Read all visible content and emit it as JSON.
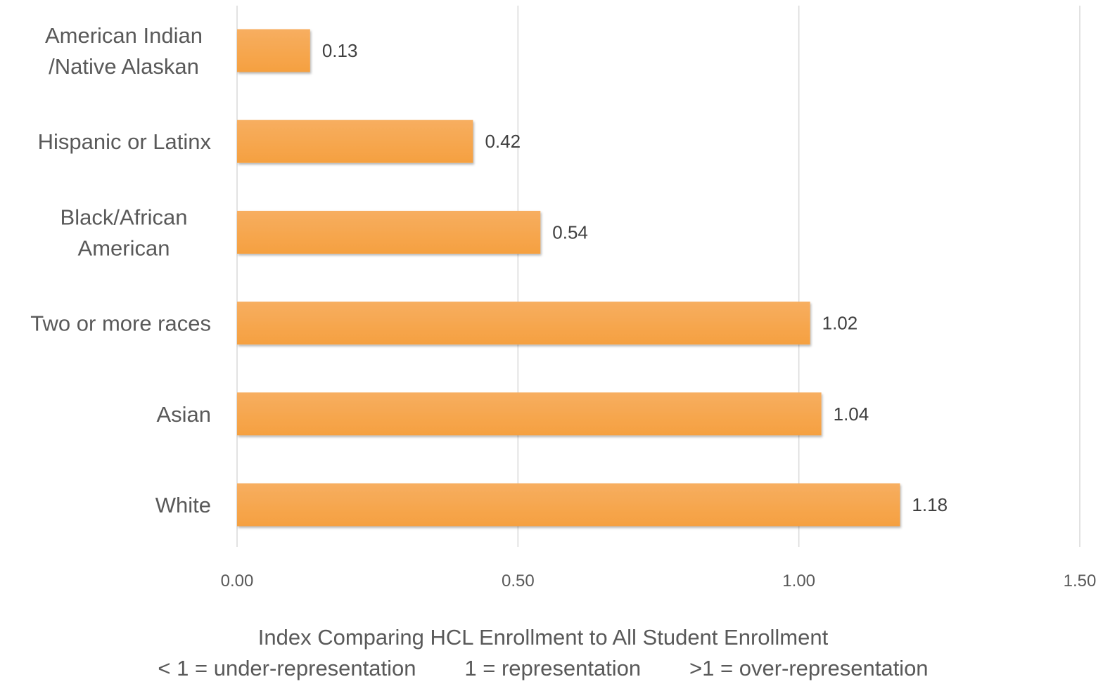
{
  "chart_data": {
    "type": "bar",
    "orientation": "horizontal",
    "categories": [
      [
        "American Indian",
        "/Native Alaskan"
      ],
      [
        "Hispanic or Latinx"
      ],
      [
        "Black/African",
        "American"
      ],
      [
        "Two or more races"
      ],
      [
        "Asian"
      ],
      [
        "White"
      ]
    ],
    "values": [
      0.13,
      0.42,
      0.54,
      1.02,
      1.04,
      1.18
    ],
    "value_labels": [
      "0.13",
      "0.42",
      "0.54",
      "1.02",
      "1.04",
      "1.18"
    ],
    "xlim": [
      0,
      1.5
    ],
    "x_ticks": [
      0,
      0.5,
      1.0,
      1.5
    ],
    "x_tick_labels": [
      "0.00",
      "0.50",
      "1.00",
      "1.50"
    ],
    "xlabel_lines": [
      "Index Comparing HCL Enrollment to All Student Enrollment",
      "< 1 = under-representation        1 = representation        >1 = over-representation"
    ],
    "title": "",
    "grid": "vertical",
    "legend": "none",
    "bar_color": "#F5A040",
    "bar_color_light": "#F7AE60"
  }
}
